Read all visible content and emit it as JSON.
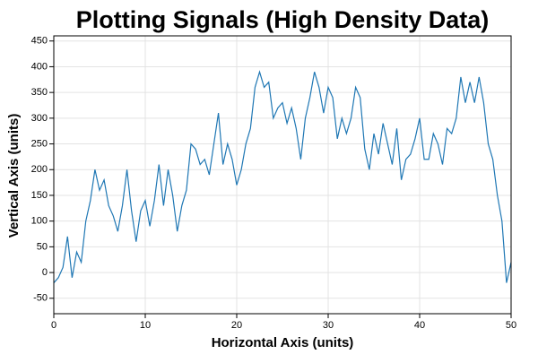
{
  "chart_data": {
    "type": "line",
    "title": "Plotting Signals (High Density Data)",
    "xlabel": "Horizontal Axis (units)",
    "ylabel": "Vertical Axis (units)",
    "x": [
      0,
      0.5,
      1,
      1.5,
      2,
      2.5,
      3,
      3.5,
      4,
      4.5,
      5,
      5.5,
      6,
      6.5,
      7,
      7.5,
      8,
      8.5,
      9,
      9.5,
      10,
      10.5,
      11,
      11.5,
      12,
      12.5,
      13,
      13.5,
      14,
      14.5,
      15,
      15.5,
      16,
      16.5,
      17,
      17.5,
      18,
      18.5,
      19,
      19.5,
      20,
      20.5,
      21,
      21.5,
      22,
      22.5,
      23,
      23.5,
      24,
      24.5,
      25,
      25.5,
      26,
      26.5,
      27,
      27.5,
      28,
      28.5,
      29,
      29.5,
      30,
      30.5,
      31,
      31.5,
      32,
      32.5,
      33,
      33.5,
      34,
      34.5,
      35,
      35.5,
      36,
      36.5,
      37,
      37.5,
      38,
      38.5,
      39,
      39.5,
      40,
      40.5,
      41,
      41.5,
      42,
      42.5,
      43,
      43.5,
      44,
      44.5,
      45,
      45.5,
      46,
      46.5,
      47,
      47.5,
      48,
      48.5,
      49,
      49.5,
      50
    ],
    "series": [
      {
        "color": "#1f77b4",
        "values": [
          -20,
          -10,
          10,
          70,
          -10,
          40,
          20,
          100,
          140,
          200,
          160,
          180,
          130,
          110,
          80,
          130,
          200,
          120,
          60,
          120,
          140,
          90,
          140,
          210,
          130,
          200,
          150,
          80,
          130,
          160,
          250,
          240,
          210,
          220,
          190,
          250,
          310,
          210,
          250,
          220,
          170,
          200,
          250,
          280,
          360,
          390,
          360,
          370,
          300,
          320,
          330,
          290,
          320,
          280,
          220,
          300,
          340,
          390,
          360,
          310,
          360,
          340,
          260,
          300,
          270,
          300,
          360,
          340,
          240,
          200,
          270,
          230,
          290,
          250,
          210,
          280,
          180,
          220,
          230,
          260,
          300,
          220,
          220,
          270,
          250,
          210,
          280,
          270,
          300,
          380,
          330,
          370,
          330,
          380,
          330,
          250,
          220,
          150,
          100,
          -20,
          20
        ]
      }
    ],
    "xlim": [
      0,
      50
    ],
    "ylim": [
      -80,
      460
    ],
    "xticks": [
      0,
      10,
      20,
      30,
      40,
      50
    ],
    "yticks": [
      -50,
      0,
      50,
      100,
      150,
      200,
      250,
      300,
      350,
      400,
      450
    ],
    "grid": true
  }
}
